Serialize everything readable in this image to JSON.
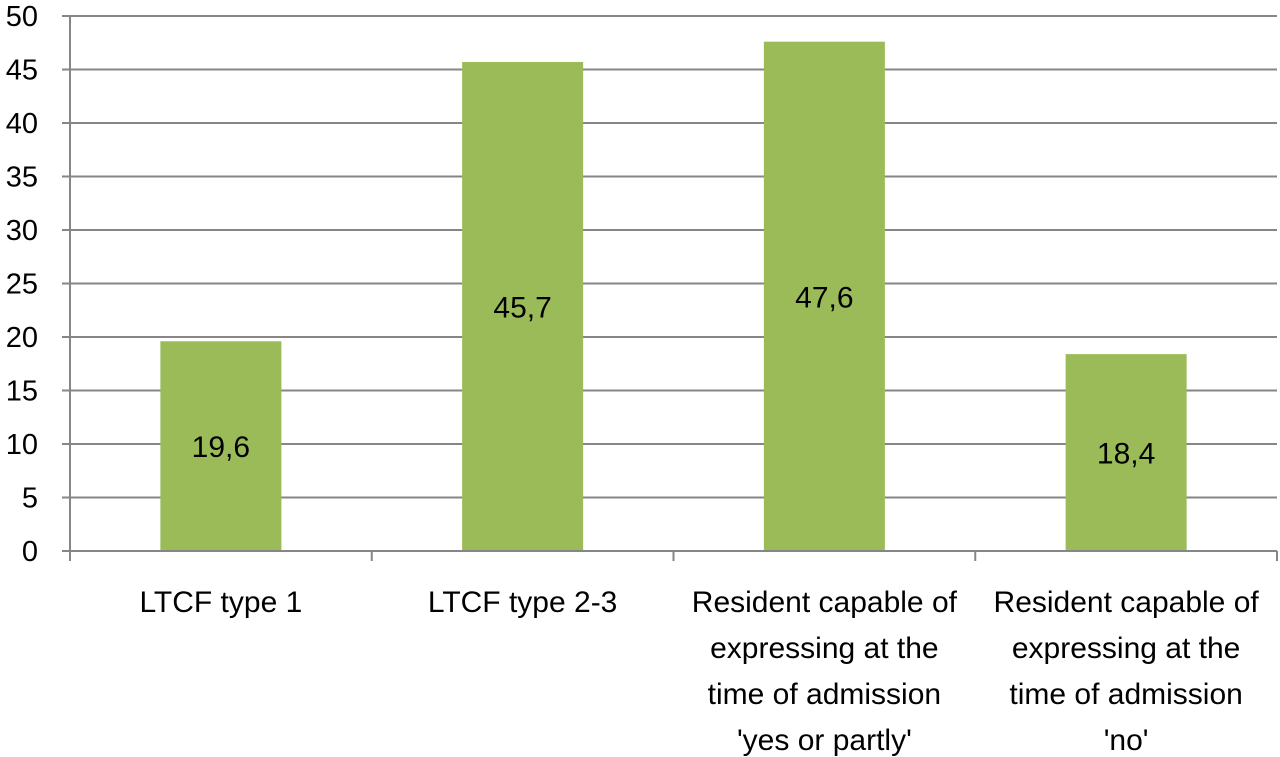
{
  "chart_data": {
    "type": "bar",
    "categories": [
      [
        "LTCF type 1"
      ],
      [
        "LTCF type 2-3"
      ],
      [
        "Resident capable of",
        "expressing at the",
        "time of admission",
        "'yes or partly'"
      ],
      [
        "Resident capable of",
        "expressing at the",
        "time of admission",
        "'no'"
      ]
    ],
    "values": [
      19.6,
      45.7,
      47.6,
      18.4
    ],
    "data_labels": [
      "19,6",
      "45,7",
      "47,6",
      "18,4"
    ],
    "ylim": [
      0,
      50
    ],
    "yticks": [
      "0",
      "5",
      "10",
      "15",
      "20",
      "25",
      "30",
      "35",
      "40",
      "45",
      "50"
    ],
    "title": "",
    "xlabel": "",
    "ylabel": "",
    "grid": true,
    "legend": "none",
    "colors": {
      "bar": "#9BBB59",
      "grid": "#868686",
      "text": "#000000"
    }
  }
}
